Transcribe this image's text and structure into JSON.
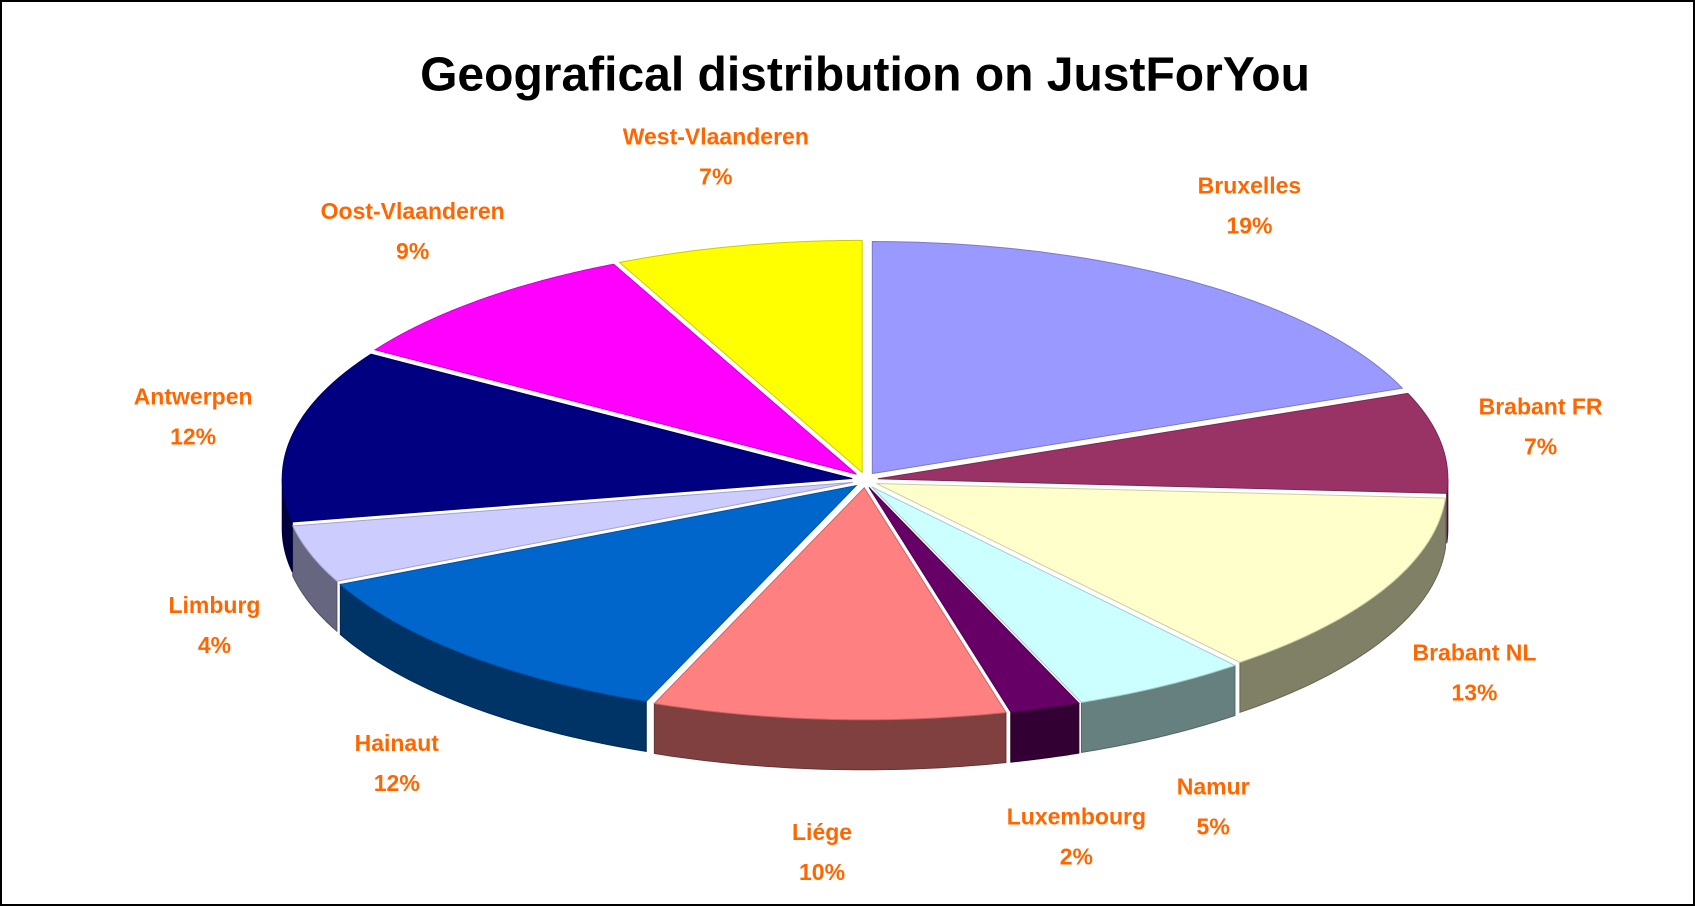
{
  "chart_data": {
    "type": "pie",
    "title": "Geografical distribution on JustForYou",
    "categories": [
      "Bruxelles",
      "Brabant FR",
      "Brabant NL",
      "Namur",
      "Luxembourg",
      "Liége",
      "Hainaut",
      "Limburg",
      "Antwerpen",
      "Oost-Vlaanderen",
      "West-Vlaanderen"
    ],
    "values": [
      19,
      7,
      13,
      5,
      2,
      10,
      12,
      4,
      12,
      9,
      7
    ],
    "value_labels": [
      "19%",
      "7%",
      "13%",
      "5%",
      "2%",
      "10%",
      "12%",
      "4%",
      "12%",
      "9%",
      "7%"
    ],
    "colors": [
      "#9999ff",
      "#993366",
      "#ffffcc",
      "#ccffff",
      "#660066",
      "#ff8080",
      "#0066cc",
      "#ccccff",
      "#000080",
      "#ff00ff",
      "#ffff00"
    ]
  }
}
